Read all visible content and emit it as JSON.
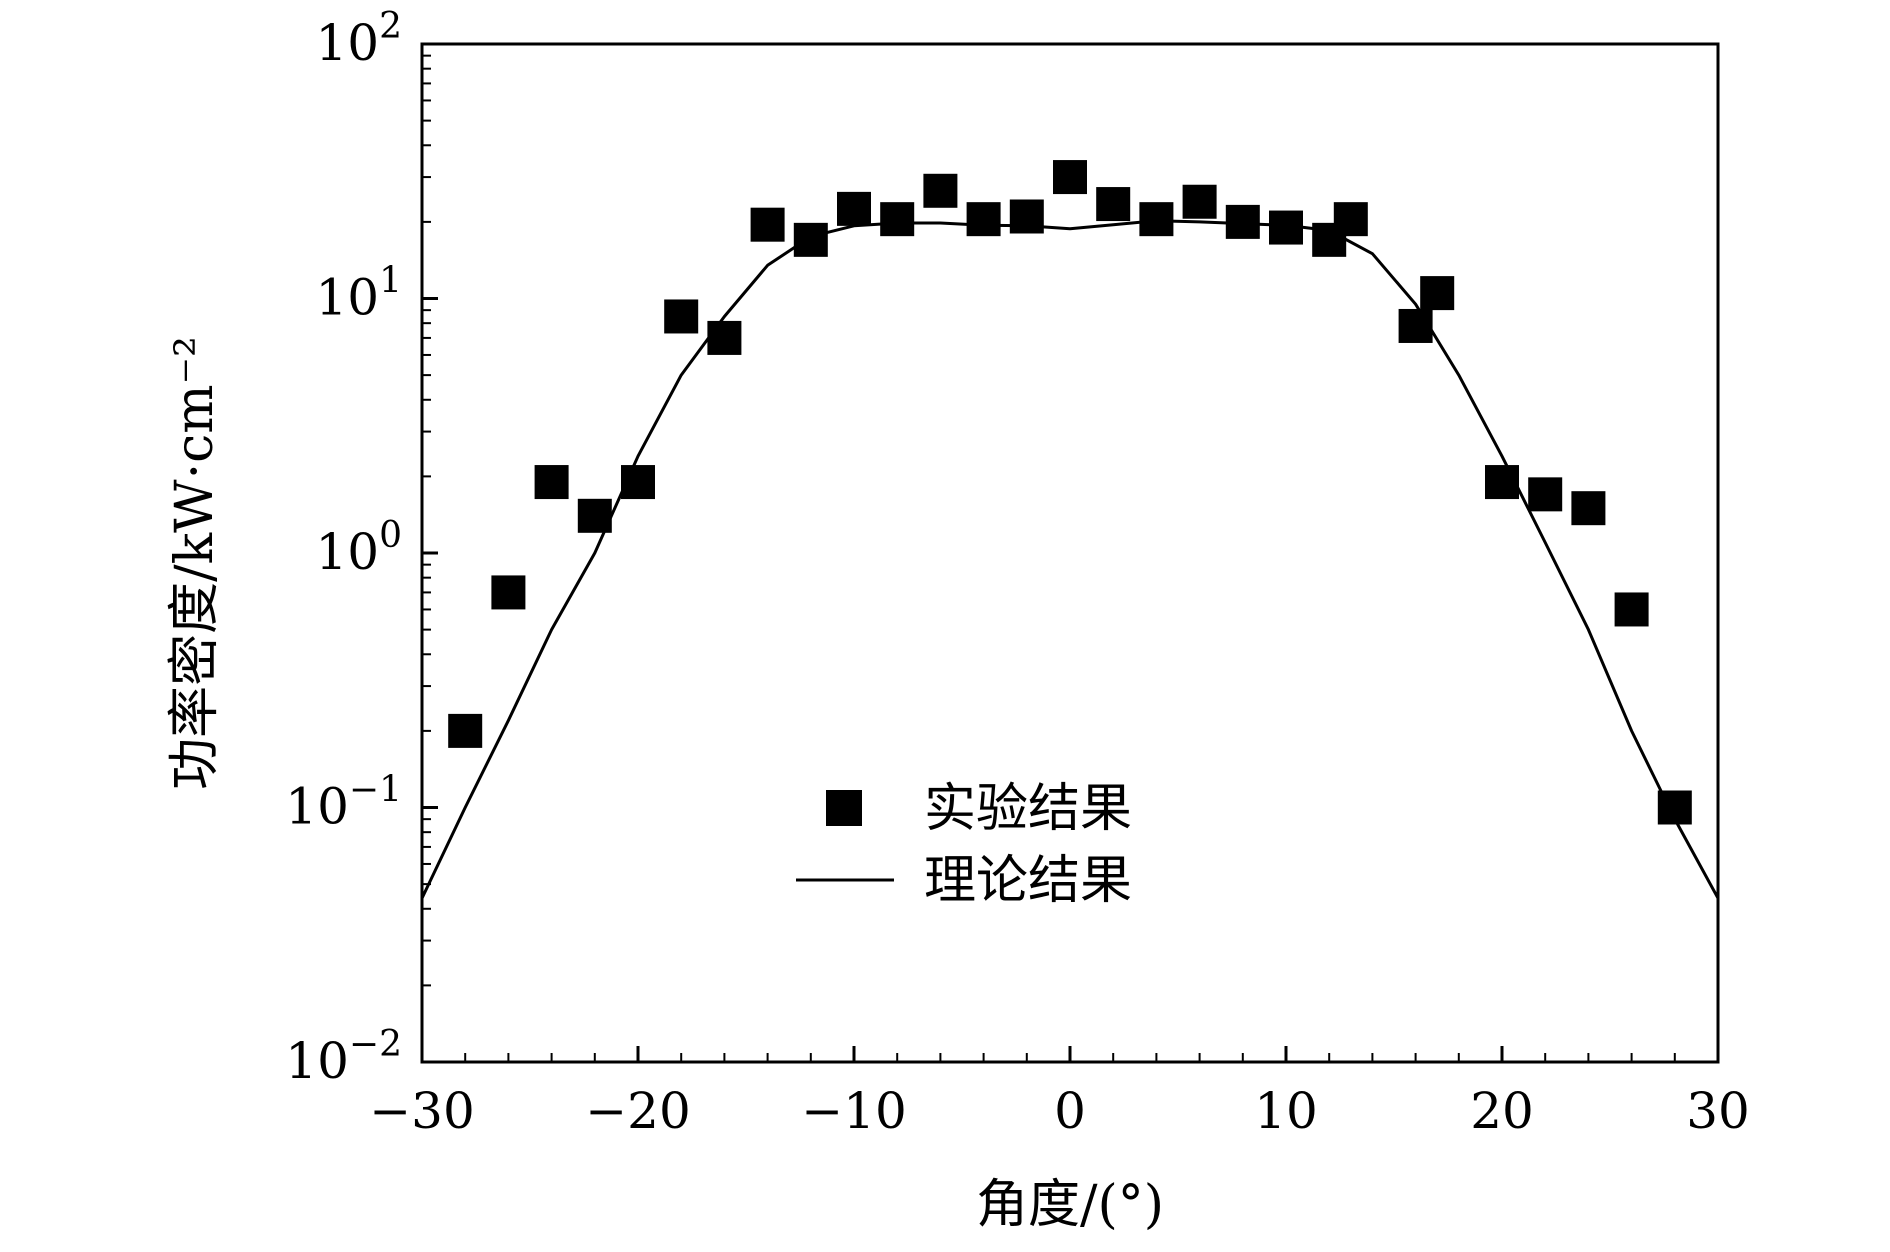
{
  "chart_data": {
    "type": "scatter",
    "title": "",
    "xlabel": "角度/(°)",
    "ylabel": "功率密度/kW·cm⁻²",
    "xlim": [
      -30,
      30
    ],
    "ylim": [
      0.01,
      100
    ],
    "yscale": "log",
    "grid": false,
    "legend_position": "center-bottom",
    "x_ticks": [
      -30,
      -20,
      -10,
      0,
      10,
      20,
      30
    ],
    "x_tick_labels": [
      "−30",
      "−20",
      "−10",
      "0",
      "10",
      "20",
      "30"
    ],
    "y_ticks": [
      {
        "value": 100,
        "base": "10",
        "exp": "2"
      },
      {
        "value": 10,
        "base": "10",
        "exp": "1"
      },
      {
        "value": 1,
        "base": "10",
        "exp": "0"
      },
      {
        "value": 0.1,
        "base": "10",
        "exp": "−1"
      },
      {
        "value": 0.01,
        "base": "10",
        "exp": "−2"
      }
    ],
    "series": [
      {
        "name": "实验结果",
        "kind": "scatter",
        "marker": "square",
        "color": "#000000",
        "x": [
          -28,
          -26,
          -24,
          -22,
          -20,
          -18,
          -16,
          -14,
          -12,
          -10,
          -8,
          -6,
          -4,
          -2,
          0,
          2,
          4,
          6,
          8,
          10,
          12,
          13,
          16,
          17,
          20,
          22,
          24,
          26,
          28
        ],
        "y": [
          0.2,
          0.7,
          1.9,
          1.4,
          1.9,
          8.5,
          7.0,
          19.5,
          17.0,
          22.5,
          20.5,
          26.5,
          20.5,
          21.0,
          30.0,
          23.5,
          20.5,
          24.0,
          20.0,
          19.0,
          17.0,
          20.5,
          7.8,
          10.5,
          1.9,
          1.7,
          1.5,
          0.6,
          0.1
        ]
      },
      {
        "name": "理论结果",
        "kind": "line",
        "color": "#000000",
        "x": [
          -30,
          -28,
          -26,
          -24,
          -22,
          -20,
          -18,
          -16,
          -14,
          -12,
          -10,
          -8,
          -6,
          -4,
          -2,
          0,
          2,
          4,
          6,
          8,
          10,
          12,
          14,
          16,
          18,
          20,
          22,
          24,
          26,
          28,
          30
        ],
        "y": [
          0.044,
          0.1,
          0.22,
          0.5,
          1.0,
          2.4,
          5.0,
          8.5,
          13.5,
          17.5,
          19.3,
          19.8,
          19.8,
          19.4,
          19.3,
          18.8,
          19.5,
          20.2,
          20.0,
          19.7,
          19.4,
          18.5,
          15.0,
          9.5,
          5.0,
          2.4,
          1.1,
          0.5,
          0.2,
          0.09,
          0.044
        ]
      }
    ],
    "legend": {
      "entries": [
        {
          "label": "实验结果",
          "marker": "square"
        },
        {
          "label": "理论结果",
          "marker": "line"
        }
      ]
    }
  }
}
